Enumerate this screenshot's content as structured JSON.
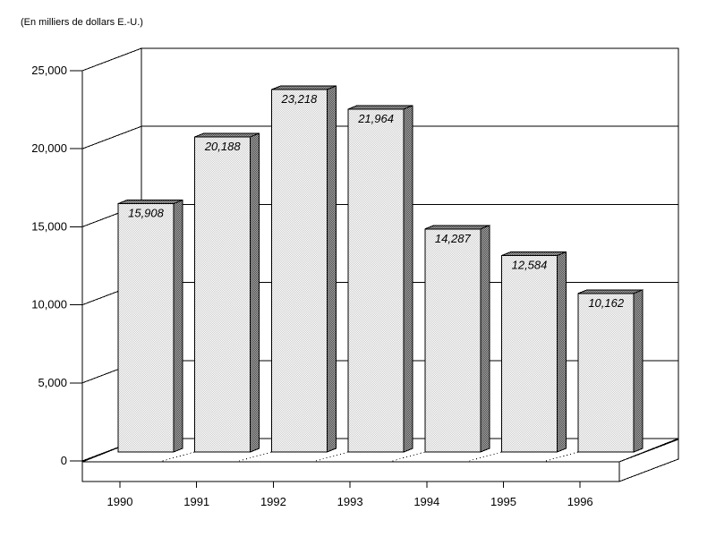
{
  "chart_data": {
    "type": "bar",
    "projection": "3d-oblique",
    "title": "(En milliers de dollars E.-U.)",
    "categories": [
      "1990",
      "1991",
      "1992",
      "1993",
      "1994",
      "1995",
      "1996"
    ],
    "values": [
      15908,
      20188,
      23218,
      21964,
      14287,
      12584,
      10162
    ],
    "value_labels": [
      "15,908",
      "20,188",
      "23,218",
      "21,964",
      "14,287",
      "12,584",
      "10,162"
    ],
    "xlabel": "",
    "ylabel": "",
    "ylim": [
      0,
      25000
    ],
    "ytick_step": 5000,
    "yticks": [
      0,
      5000,
      10000,
      15000,
      20000,
      25000
    ],
    "ytick_labels": [
      "0",
      "5,000",
      "10,000",
      "15,000",
      "20,000",
      "25,000"
    ],
    "grid": true,
    "legend": false,
    "value_label_style": "italic",
    "colors": {
      "line": "#000000",
      "text": "#000000",
      "background": "#ffffff",
      "wall_fill": "#ffffff",
      "bar_front_base": "#ffffff",
      "bar_front_dither": "#cccccc",
      "bar_side_base": "#a8a8a8",
      "bar_side_dither": "#4d4d4d"
    }
  }
}
